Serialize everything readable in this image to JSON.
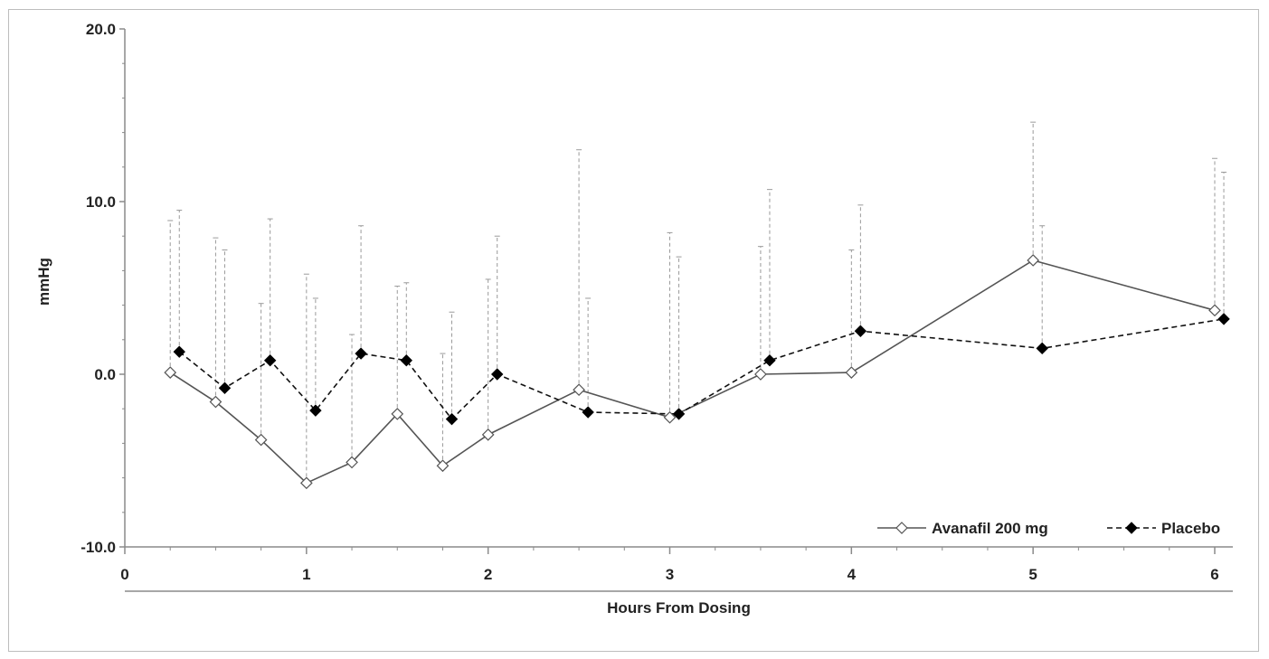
{
  "chart_data": {
    "type": "line",
    "title": "",
    "xlabel": "Hours From Dosing",
    "ylabel": "mmHg",
    "xlim": [
      0,
      6
    ],
    "ylim": [
      -10,
      20
    ],
    "x_ticks": [
      "0",
      "1",
      "2",
      "3",
      "4",
      "5",
      "6"
    ],
    "y_ticks": [
      "-10.0",
      "0.0",
      "10.0",
      "20.0"
    ],
    "grid": false,
    "legend_position": "bottom-right",
    "error_bars": "upper, dashed",
    "series": [
      {
        "name": "Avanafil 200 mg",
        "line_style": "solid",
        "marker": "open-diamond",
        "color": "#555555",
        "x": [
          0.25,
          0.5,
          0.75,
          1.0,
          1.25,
          1.5,
          1.75,
          2.0,
          2.5,
          3.0,
          3.5,
          4.0,
          5.0,
          6.0
        ],
        "y": [
          0.1,
          -1.6,
          -3.8,
          -6.3,
          -5.1,
          -2.3,
          -5.3,
          -3.5,
          -0.9,
          -2.5,
          0.0,
          0.1,
          6.6,
          3.7
        ],
        "error_upper": [
          8.9,
          7.9,
          4.1,
          5.8,
          2.3,
          5.1,
          1.2,
          5.5,
          13.0,
          8.2,
          7.4,
          7.2,
          14.6,
          12.5
        ]
      },
      {
        "name": "Placebo",
        "line_style": "dashed",
        "marker": "filled-diamond",
        "color": "#000000",
        "x": [
          0.3,
          0.55,
          0.8,
          1.05,
          1.3,
          1.55,
          1.8,
          2.05,
          2.55,
          3.05,
          3.55,
          4.05,
          5.05,
          6.05
        ],
        "y": [
          1.3,
          -0.8,
          0.8,
          -2.1,
          1.2,
          0.8,
          -2.6,
          0.0,
          -2.2,
          -2.3,
          0.8,
          2.5,
          1.5,
          3.2
        ],
        "error_upper": [
          9.5,
          7.2,
          9.0,
          4.4,
          8.6,
          5.3,
          3.6,
          8.0,
          4.4,
          6.8,
          10.7,
          9.8,
          8.6,
          11.7
        ]
      }
    ]
  },
  "colors": {
    "axis": "#8a8a8a",
    "error_bar": "#9a9a9a",
    "frame": "#bdbdbd"
  }
}
